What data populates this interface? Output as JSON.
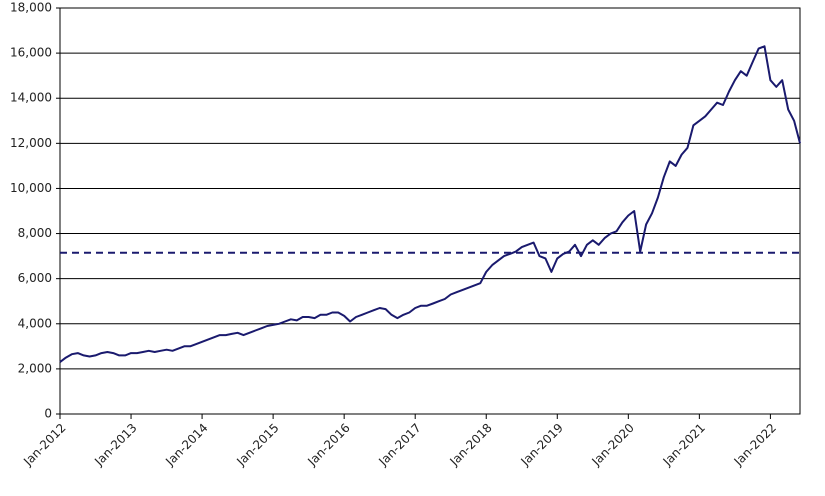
{
  "chart_data": {
    "type": "line",
    "x": [
      "2012-01",
      "2012-02",
      "2012-03",
      "2012-04",
      "2012-05",
      "2012-06",
      "2012-07",
      "2012-08",
      "2012-09",
      "2012-10",
      "2012-11",
      "2012-12",
      "2013-01",
      "2013-02",
      "2013-03",
      "2013-04",
      "2013-05",
      "2013-06",
      "2013-07",
      "2013-08",
      "2013-09",
      "2013-10",
      "2013-11",
      "2013-12",
      "2014-01",
      "2014-02",
      "2014-03",
      "2014-04",
      "2014-05",
      "2014-06",
      "2014-07",
      "2014-08",
      "2014-09",
      "2014-10",
      "2014-11",
      "2014-12",
      "2015-01",
      "2015-02",
      "2015-03",
      "2015-04",
      "2015-05",
      "2015-06",
      "2015-07",
      "2015-08",
      "2015-09",
      "2015-10",
      "2015-11",
      "2015-12",
      "2016-01",
      "2016-02",
      "2016-03",
      "2016-04",
      "2016-05",
      "2016-06",
      "2016-07",
      "2016-08",
      "2016-09",
      "2016-10",
      "2016-11",
      "2016-12",
      "2017-01",
      "2017-02",
      "2017-03",
      "2017-04",
      "2017-05",
      "2017-06",
      "2017-07",
      "2017-08",
      "2017-09",
      "2017-10",
      "2017-11",
      "2017-12",
      "2018-01",
      "2018-02",
      "2018-03",
      "2018-04",
      "2018-05",
      "2018-06",
      "2018-07",
      "2018-08",
      "2018-09",
      "2018-10",
      "2018-11",
      "2018-12",
      "2019-01",
      "2019-02",
      "2019-03",
      "2019-04",
      "2019-05",
      "2019-06",
      "2019-07",
      "2019-08",
      "2019-09",
      "2019-10",
      "2019-11",
      "2019-12",
      "2020-01",
      "2020-02",
      "2020-03",
      "2020-04",
      "2020-05",
      "2020-06",
      "2020-07",
      "2020-08",
      "2020-09",
      "2020-10",
      "2020-11",
      "2020-12",
      "2021-01",
      "2021-02",
      "2021-03",
      "2021-04",
      "2021-05",
      "2021-06",
      "2021-07",
      "2021-08",
      "2021-09",
      "2021-10",
      "2021-11",
      "2021-12",
      "2022-01",
      "2022-02",
      "2022-03",
      "2022-04",
      "2022-05",
      "2022-06"
    ],
    "series": [
      {
        "color": "#1a1a6e",
        "values": [
          2300,
          2500,
          2650,
          2700,
          2600,
          2550,
          2600,
          2700,
          2750,
          2700,
          2600,
          2600,
          2700,
          2700,
          2750,
          2800,
          2750,
          2800,
          2850,
          2800,
          2900,
          3000,
          3000,
          3100,
          3200,
          3300,
          3400,
          3500,
          3500,
          3550,
          3600,
          3500,
          3600,
          3700,
          3800,
          3900,
          3950,
          4000,
          4100,
          4200,
          4150,
          4300,
          4300,
          4250,
          4400,
          4400,
          4500,
          4500,
          4350,
          4100,
          4300,
          4400,
          4500,
          4600,
          4700,
          4650,
          4400,
          4250,
          4400,
          4500,
          4700,
          4800,
          4800,
          4900,
          5000,
          5100,
          5300,
          5400,
          5500,
          5600,
          5700,
          5800,
          6300,
          6600,
          6800,
          7000,
          7100,
          7200,
          7400,
          7500,
          7600,
          7000,
          6900,
          6300,
          6900,
          7100,
          7200,
          7500,
          7000,
          7500,
          7700,
          7500,
          7800,
          8000,
          8100,
          8500,
          8800,
          9000,
          7200,
          8400,
          8900,
          9600,
          10500,
          11200,
          11000,
          11500,
          11800,
          12800,
          13000,
          13200,
          13500,
          13800,
          13700,
          14300,
          14800,
          15200,
          15000,
          15600,
          16200,
          16300,
          14800,
          14500,
          14800,
          13500,
          13000,
          12000
        ]
      }
    ],
    "reference_line": 7150,
    "reference_color": "#1a1a6e",
    "xlim": [
      "2012-01",
      "2022-06"
    ],
    "xticks": [
      {
        "value": "2012-01",
        "label": "Jan-2012"
      },
      {
        "value": "2013-01",
        "label": "Jan-2013"
      },
      {
        "value": "2014-01",
        "label": "Jan-2014"
      },
      {
        "value": "2015-01",
        "label": "Jan-2015"
      },
      {
        "value": "2016-01",
        "label": "Jan-2016"
      },
      {
        "value": "2017-01",
        "label": "Jan-2017"
      },
      {
        "value": "2018-01",
        "label": "Jan-2018"
      },
      {
        "value": "2019-01",
        "label": "Jan-2019"
      },
      {
        "value": "2020-01",
        "label": "Jan-2020"
      },
      {
        "value": "2021-01",
        "label": "Jan-2021"
      },
      {
        "value": "2022-01",
        "label": "Jan-2022"
      }
    ],
    "ylim": [
      0,
      18000
    ],
    "yticks": [
      0,
      {
        "value": 2000,
        "label": "2,000"
      },
      {
        "value": 4000,
        "label": "4,000"
      },
      {
        "value": 6000,
        "label": "6,000"
      },
      {
        "value": 8000,
        "label": "8,000"
      },
      {
        "value": 10000,
        "label": "10,000"
      },
      {
        "value": 12000,
        "label": "12,000"
      },
      {
        "value": 14000,
        "label": "14,000"
      },
      {
        "value": 16000,
        "label": "16,000"
      },
      {
        "value": 18000,
        "label": "18,000"
      }
    ],
    "grid": true
  }
}
